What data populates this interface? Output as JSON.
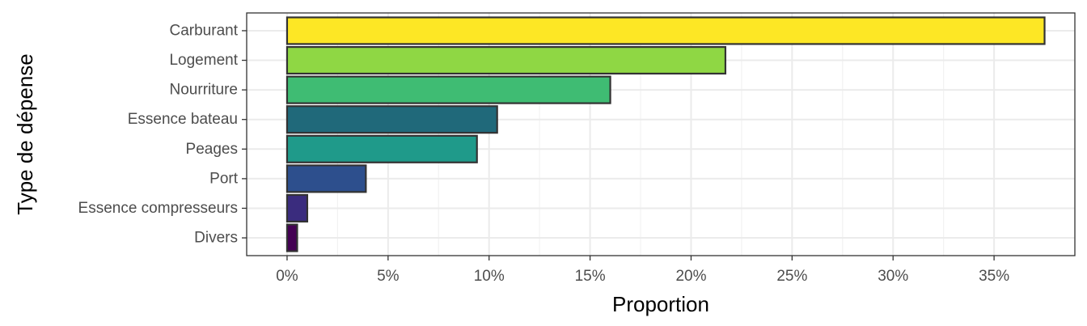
{
  "chart_data": {
    "type": "bar",
    "orientation": "horizontal",
    "title": "",
    "xlabel": "Proportion",
    "ylabel": "Type de dépense",
    "xlim": [
      -2,
      39
    ],
    "x_ticks": [
      0,
      5,
      10,
      15,
      20,
      25,
      30,
      35
    ],
    "x_tick_labels": [
      "0%",
      "5%",
      "10%",
      "15%",
      "20%",
      "25%",
      "30%",
      "35%"
    ],
    "grid": true,
    "legend": "none",
    "categories": [
      "Carburant",
      "Logement",
      "Nourriture",
      "Essence bateau",
      "Peages",
      "Port",
      "Essence compresseurs",
      "Divers"
    ],
    "values": [
      37.5,
      21.7,
      16.0,
      10.4,
      9.4,
      3.9,
      1.0,
      0.5
    ],
    "colors": [
      "#FDE725",
      "#8FD744",
      "#3FBC73",
      "#20697A",
      "#1F9A8A",
      "#2D4F8D",
      "#3A2C7E",
      "#440154"
    ],
    "bar_outline": "#333333"
  }
}
